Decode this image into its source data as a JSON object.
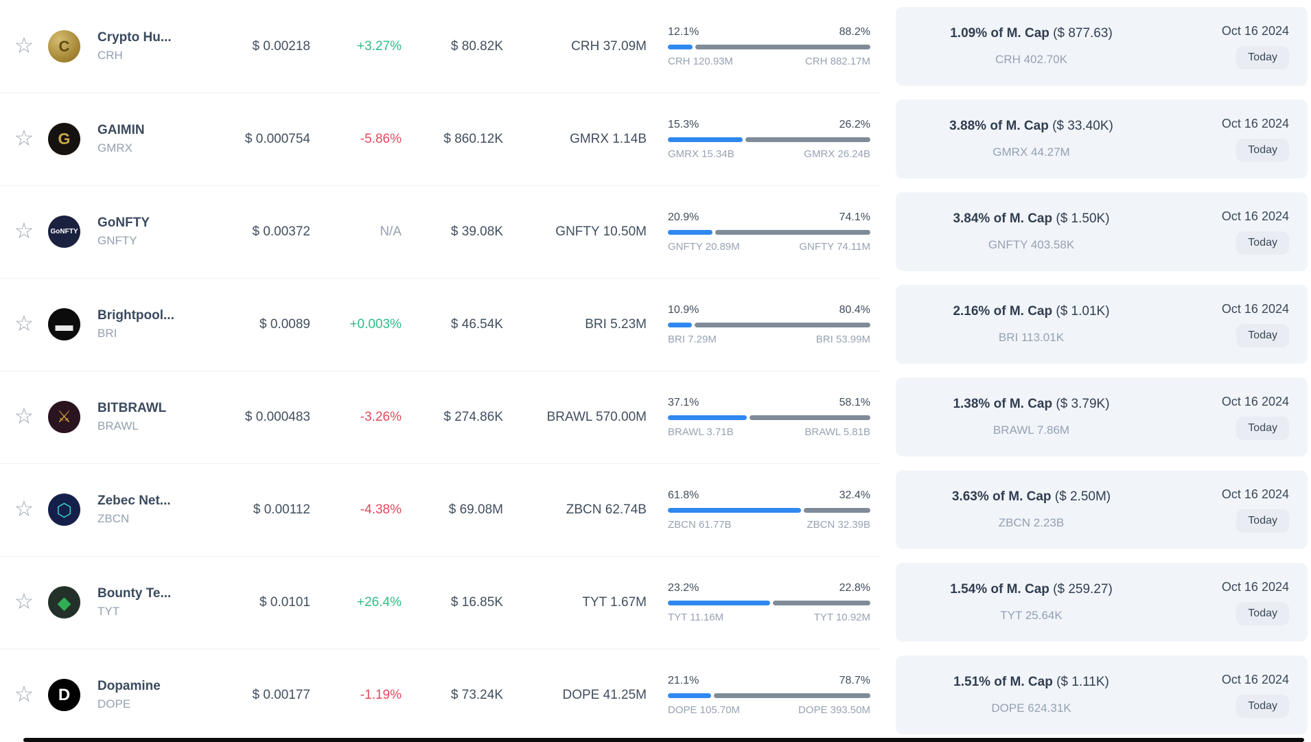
{
  "colors": {
    "accent_blue": "#2f88f0",
    "bar_gray": "#7f8b98",
    "positive_green": "#2ebd85",
    "negative_red": "#e2485c",
    "panel_bg": "#f1f5fa"
  },
  "rows": [
    {
      "name": "Crypto Hu...",
      "symbol": "CRH",
      "price": "$ 0.00218",
      "change": "+3.27%",
      "change_dir": "up",
      "value": "$ 80.82K",
      "amount": "CRH 37.09M",
      "bar": {
        "left_pct": "12.1%",
        "right_pct": "88.2%",
        "left_label": "CRH 120.93M",
        "right_label": "CRH 882.17M",
        "fill_pct": 12.1
      },
      "mcap": {
        "bold": "1.09% of M. Cap",
        "paren": " ($ 877.63)",
        "sub": "CRH 402.70K"
      },
      "date": "Oct 16 2024",
      "badge": "Today",
      "logo": {
        "glyph": "C",
        "bg": "radial-gradient(circle at 35% 30%, #d6bc72, #9c7d2a 75%)",
        "fg": "#5f4a12",
        "size": 22
      }
    },
    {
      "name": "GAIMIN",
      "symbol": "GMRX",
      "price": "$ 0.000754",
      "change": "-5.86%",
      "change_dir": "down",
      "value": "$ 860.12K",
      "amount": "GMRX 1.14B",
      "bar": {
        "left_pct": "15.3%",
        "right_pct": "26.2%",
        "left_label": "GMRX 15.34B",
        "right_label": "GMRX 26.24B",
        "fill_pct": 36.9
      },
      "mcap": {
        "bold": "3.88% of M. Cap",
        "paren": " ($ 33.40K)",
        "sub": "GMRX 44.27M"
      },
      "date": "Oct 16 2024",
      "badge": "Today",
      "logo": {
        "glyph": "G",
        "bg": "#151210",
        "fg": "#caa84c",
        "size": 23
      }
    },
    {
      "name": "GoNFTY",
      "symbol": "GNFTY",
      "price": "$ 0.00372",
      "change": "N/A",
      "change_dir": "na",
      "value": "$ 39.08K",
      "amount": "GNFTY 10.50M",
      "bar": {
        "left_pct": "20.9%",
        "right_pct": "74.1%",
        "left_label": "GNFTY 20.89M",
        "right_label": "GNFTY 74.11M",
        "fill_pct": 22.0
      },
      "mcap": {
        "bold": "3.84% of M. Cap",
        "paren": " ($ 1.50K)",
        "sub": "GNFTY 403.58K"
      },
      "date": "Oct 16 2024",
      "badge": "Today",
      "logo": {
        "glyph": "GoNFTY",
        "bg": "#1b2240",
        "fg": "#ffffff",
        "size": 10
      }
    },
    {
      "name": "Brightpool...",
      "symbol": "BRI",
      "price": "$ 0.0089",
      "change": "+0.003%",
      "change_dir": "up",
      "value": "$ 46.54K",
      "amount": "BRI 5.23M",
      "bar": {
        "left_pct": "10.9%",
        "right_pct": "80.4%",
        "left_label": "BRI 7.29M",
        "right_label": "BRI 53.99M",
        "fill_pct": 11.9
      },
      "mcap": {
        "bold": "2.16% of M. Cap",
        "paren": " ($ 1.01K)",
        "sub": "BRI 113.01K"
      },
      "date": "Oct 16 2024",
      "badge": "Today",
      "logo": {
        "glyph": "▬",
        "bg": "#0c0c0c",
        "fg": "#e9e9e9",
        "size": 26
      }
    },
    {
      "name": "BITBRAWL",
      "symbol": "BRAWL",
      "price": "$ 0.000483",
      "change": "-3.26%",
      "change_dir": "down",
      "value": "$ 274.86K",
      "amount": "BRAWL 570.00M",
      "bar": {
        "left_pct": "37.1%",
        "right_pct": "58.1%",
        "left_label": "BRAWL 3.71B",
        "right_label": "BRAWL 5.81B",
        "fill_pct": 39.0
      },
      "mcap": {
        "bold": "1.38% of M. Cap",
        "paren": " ($ 3.79K)",
        "sub": "BRAWL 7.86M"
      },
      "date": "Oct 16 2024",
      "badge": "Today",
      "logo": {
        "glyph": "⚔",
        "bg": "#2a1420",
        "fg": "#d8a13c",
        "size": 24
      }
    },
    {
      "name": "Zebec Net...",
      "symbol": "ZBCN",
      "price": "$ 0.00112",
      "change": "-4.38%",
      "change_dir": "down",
      "value": "$ 69.08M",
      "amount": "ZBCN 62.74B",
      "bar": {
        "left_pct": "61.8%",
        "right_pct": "32.4%",
        "left_label": "ZBCN 61.77B",
        "right_label": "ZBCN 32.39B",
        "fill_pct": 65.6
      },
      "mcap": {
        "bold": "3.63% of M. Cap",
        "paren": " ($ 2.50M)",
        "sub": "ZBCN 2.23B"
      },
      "date": "Oct 16 2024",
      "badge": "Today",
      "logo": {
        "glyph": "⬡",
        "bg": "#15204a",
        "fg": "#3ad6cf",
        "size": 26
      }
    },
    {
      "name": "Bounty Te...",
      "symbol": "TYT",
      "price": "$ 0.0101",
      "change": "+26.4%",
      "change_dir": "up",
      "value": "$ 16.85K",
      "amount": "TYT 1.67M",
      "bar": {
        "left_pct": "23.2%",
        "right_pct": "22.8%",
        "left_label": "TYT 11.16M",
        "right_label": "TYT 10.92M",
        "fill_pct": 50.5
      },
      "mcap": {
        "bold": "1.54% of M. Cap",
        "paren": " ($ 259.27)",
        "sub": "TYT 25.64K"
      },
      "date": "Oct 16 2024",
      "badge": "Today",
      "logo": {
        "glyph": "◆",
        "bg": "#23312a",
        "fg": "#2fae52",
        "size": 26
      }
    },
    {
      "name": "Dopamine",
      "symbol": "DOPE",
      "price": "$ 0.00177",
      "change": "-1.19%",
      "change_dir": "down",
      "value": "$ 73.24K",
      "amount": "DOPE 41.25M",
      "bar": {
        "left_pct": "21.1%",
        "right_pct": "78.7%",
        "left_label": "DOPE 105.70M",
        "right_label": "DOPE 393.50M",
        "fill_pct": 21.2
      },
      "mcap": {
        "bold": "1.51% of M. Cap",
        "paren": " ($ 1.11K)",
        "sub": "DOPE 624.31K"
      },
      "date": "Oct 16 2024",
      "badge": "Today",
      "logo": {
        "glyph": "D",
        "bg": "#000000",
        "fg": "#ffffff",
        "size": 24
      }
    }
  ]
}
